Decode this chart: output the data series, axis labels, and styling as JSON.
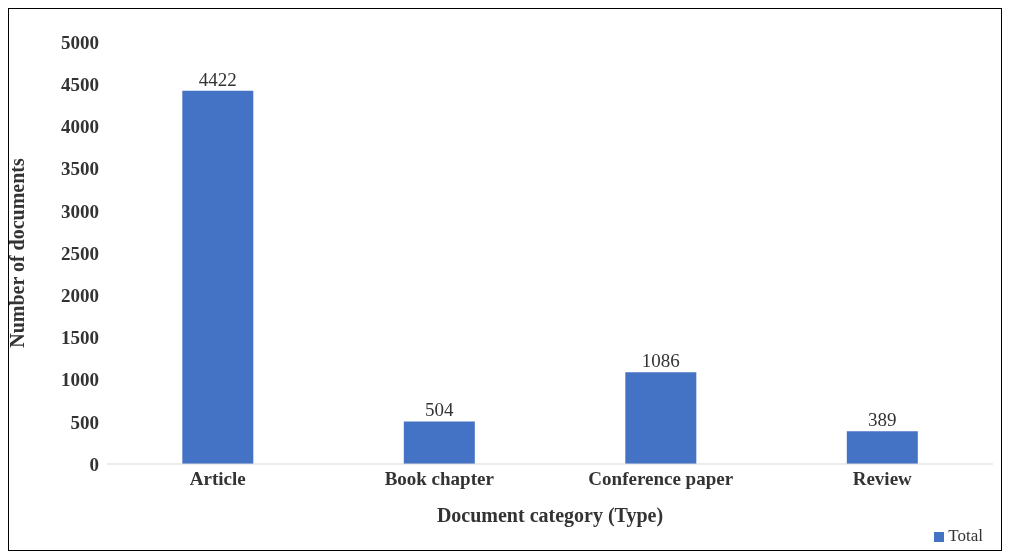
{
  "chart_data": {
    "type": "bar",
    "xlabel": "Document category (Type)",
    "ylabel": "Number of documents",
    "categories": [
      "Article",
      "Book chapter",
      "Conference paper",
      "Review"
    ],
    "series": [
      {
        "name": "Total",
        "color": "#4472c4",
        "values": [
          4422,
          504,
          1086,
          389
        ]
      }
    ],
    "ylim": [
      0,
      5000
    ],
    "yticks": [
      0,
      500,
      1000,
      1500,
      2000,
      2500,
      3000,
      3500,
      4000,
      4500,
      5000
    ],
    "data_labels": true,
    "grid": false,
    "legend": "bottom right"
  }
}
